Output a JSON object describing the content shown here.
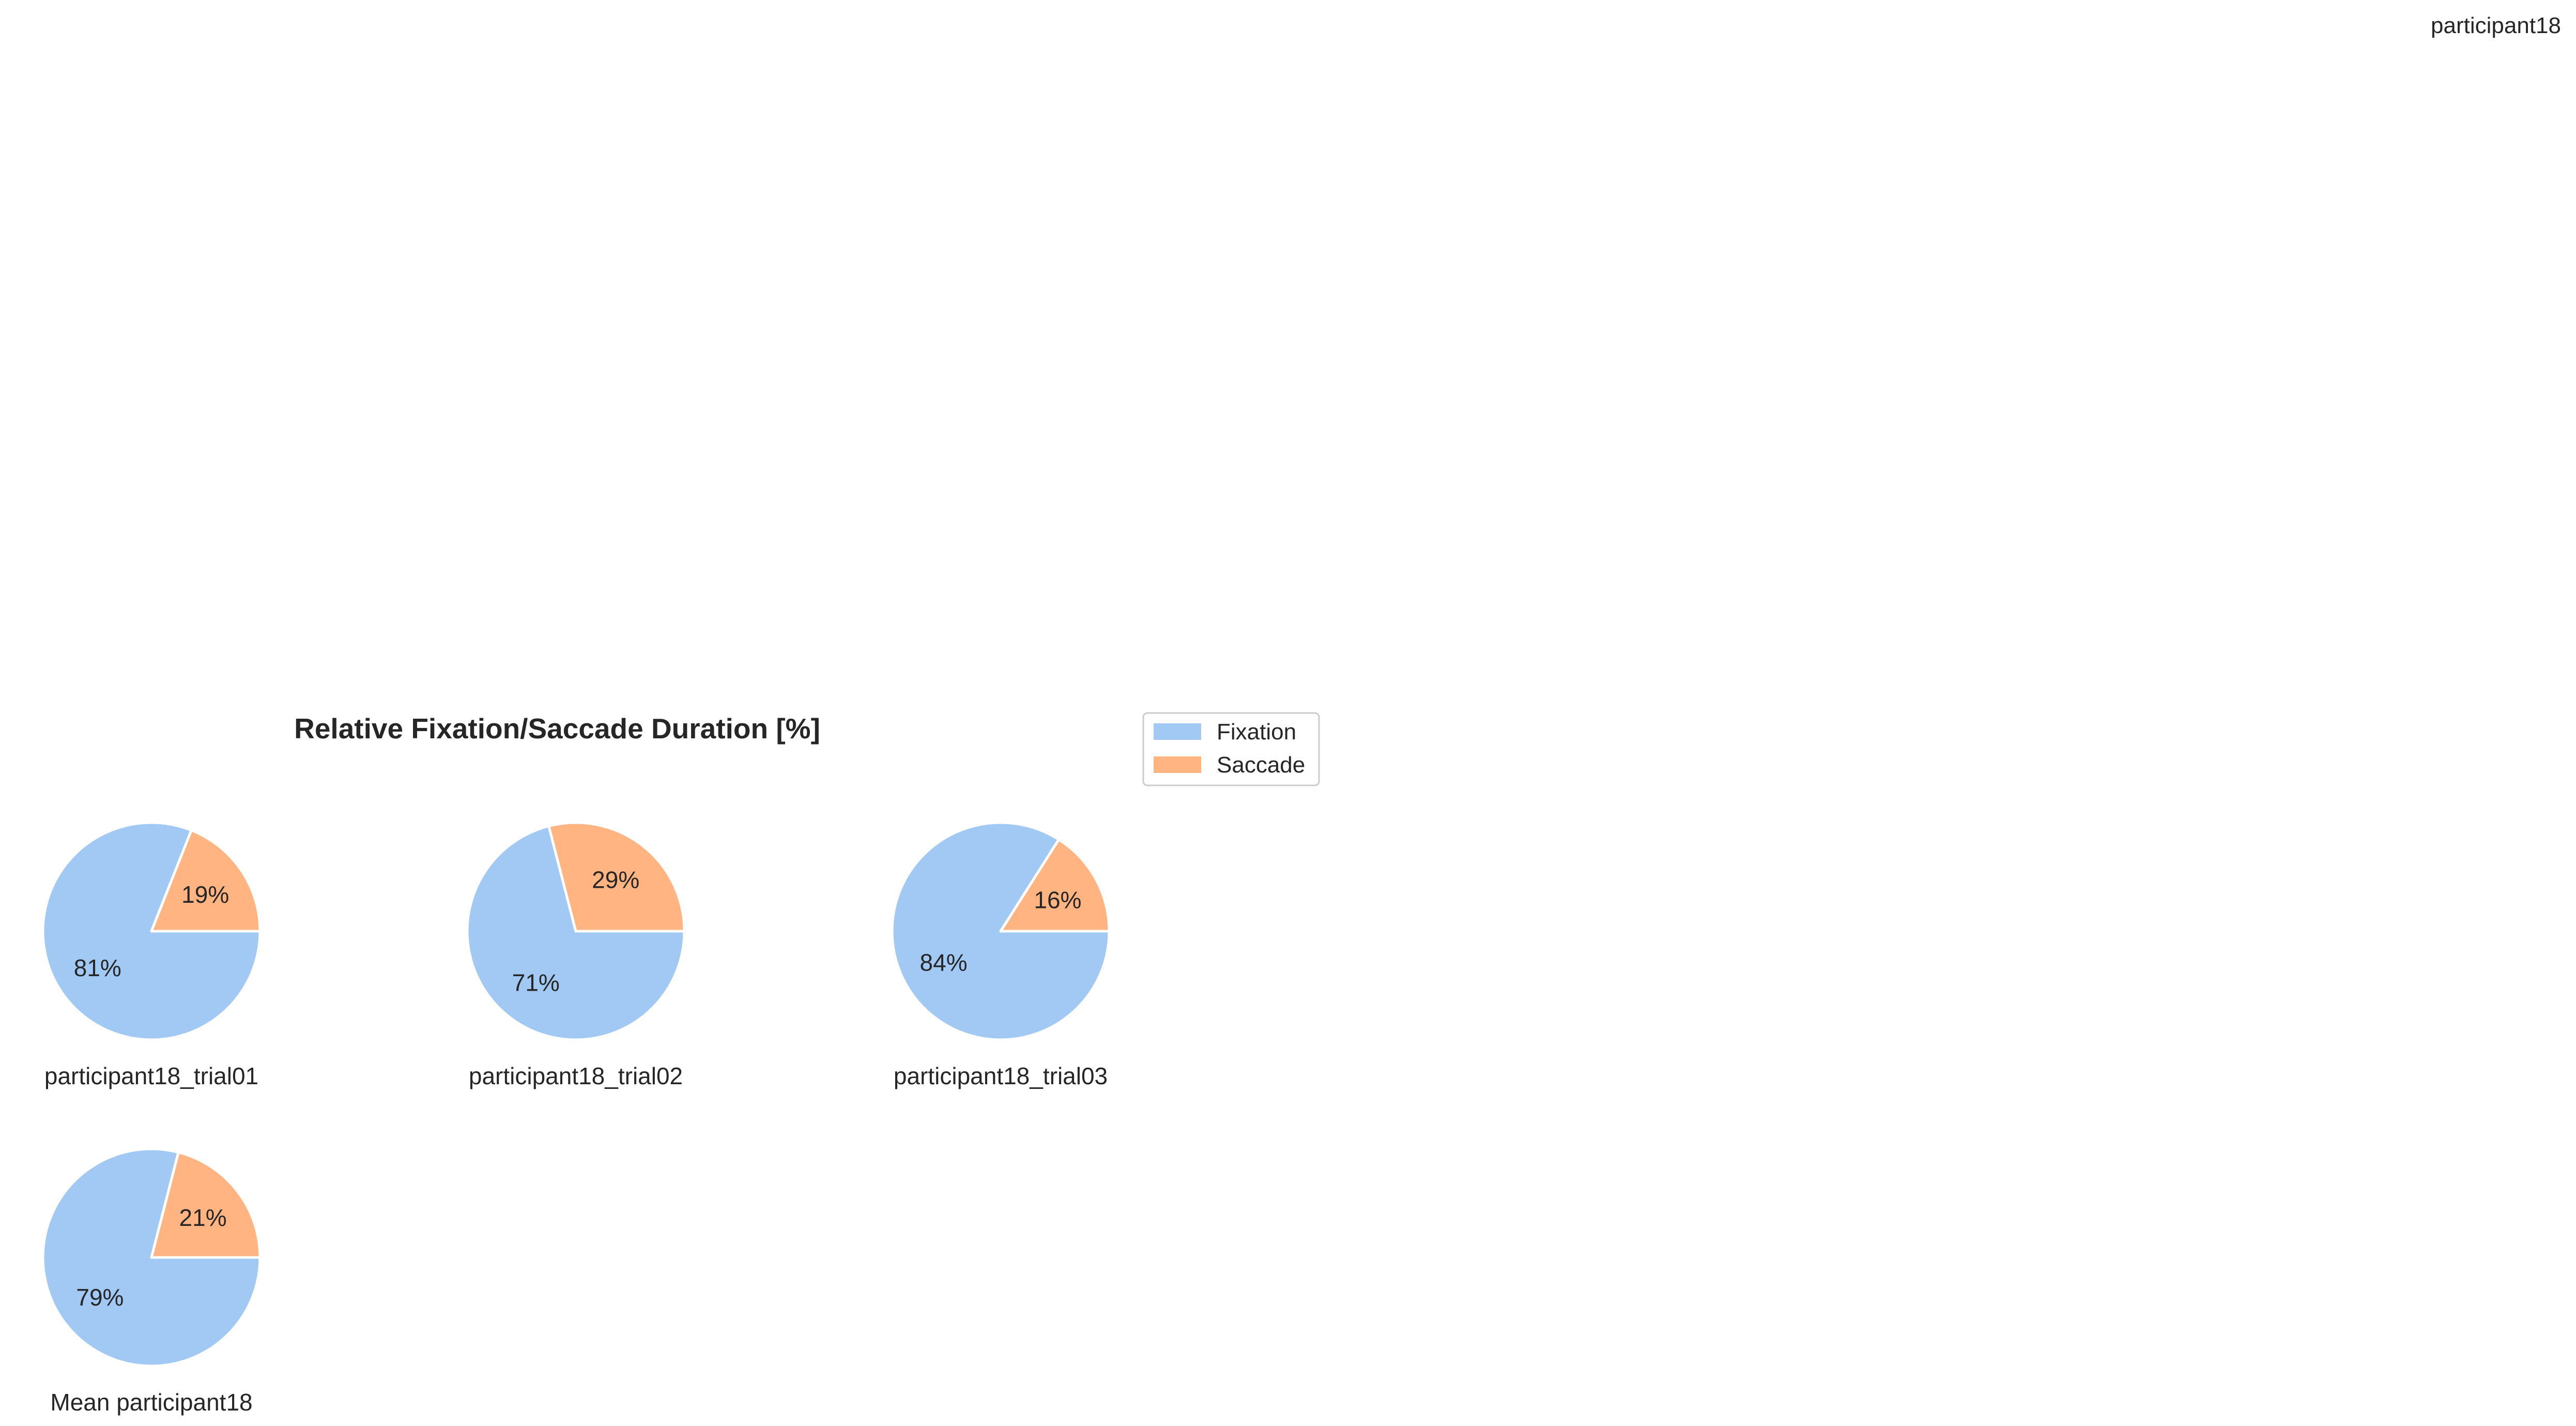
{
  "corner_label": "participant18",
  "chart_data": {
    "type": "pie",
    "title": "Relative Fixation/Saccade Duration [%]",
    "legend": {
      "position": "upper-right of pie grid",
      "entries": [
        {
          "label": "Fixation",
          "color": "#a1c9f4"
        },
        {
          "label": "Saccade",
          "color": "#ffb482"
        }
      ]
    },
    "categories": [
      "Fixation",
      "Saccade"
    ],
    "pies": [
      {
        "label": "participant18_trial01",
        "values": [
          81,
          19
        ],
        "pct_labels": [
          "81%",
          "19%"
        ]
      },
      {
        "label": "participant18_trial02",
        "values": [
          71,
          29
        ],
        "pct_labels": [
          "71%",
          "29%"
        ]
      },
      {
        "label": "participant18_trial03",
        "values": [
          84,
          16
        ],
        "pct_labels": [
          "84%",
          "16%"
        ]
      },
      {
        "label": "Mean participant18",
        "values": [
          79,
          21
        ],
        "pct_labels": [
          "79%",
          "21%"
        ]
      }
    ],
    "start_angle_deg": 0,
    "direction": "clockwise",
    "edge_color": "#ffffff"
  }
}
